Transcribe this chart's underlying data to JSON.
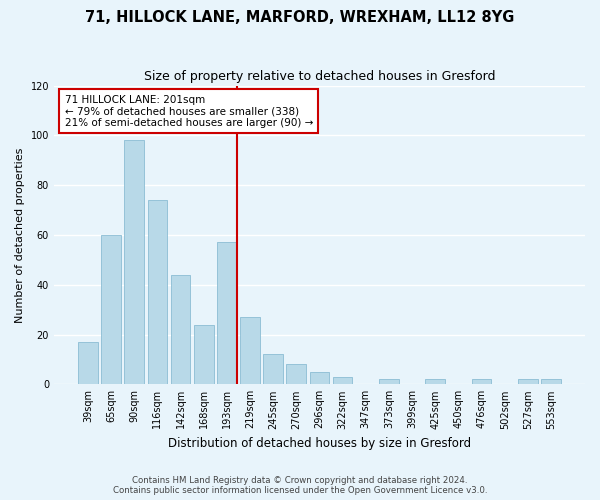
{
  "title": "71, HILLOCK LANE, MARFORD, WREXHAM, LL12 8YG",
  "subtitle": "Size of property relative to detached houses in Gresford",
  "xlabel": "Distribution of detached houses by size in Gresford",
  "ylabel": "Number of detached properties",
  "bar_labels": [
    "39sqm",
    "65sqm",
    "90sqm",
    "116sqm",
    "142sqm",
    "168sqm",
    "193sqm",
    "219sqm",
    "245sqm",
    "270sqm",
    "296sqm",
    "322sqm",
    "347sqm",
    "373sqm",
    "399sqm",
    "425sqm",
    "450sqm",
    "476sqm",
    "502sqm",
    "527sqm",
    "553sqm"
  ],
  "bar_values": [
    17,
    60,
    98,
    74,
    44,
    24,
    57,
    27,
    12,
    8,
    5,
    3,
    0,
    2,
    0,
    2,
    0,
    2,
    0,
    2,
    2
  ],
  "bar_color": "#b8d9e8",
  "bar_edgecolor": "#8bbdd4",
  "vline_index": 6,
  "vline_color": "#cc0000",
  "annotation_title": "71 HILLOCK LANE: 201sqm",
  "annotation_line1": "← 79% of detached houses are smaller (338)",
  "annotation_line2": "21% of semi-detached houses are larger (90) →",
  "annotation_box_color": "white",
  "annotation_box_edgecolor": "#cc0000",
  "ylim": [
    0,
    120
  ],
  "yticks": [
    0,
    20,
    40,
    60,
    80,
    100,
    120
  ],
  "footer1": "Contains HM Land Registry data © Crown copyright and database right 2024.",
  "footer2": "Contains public sector information licensed under the Open Government Licence v3.0.",
  "background_color": "#e8f4fb",
  "grid_color": "white"
}
